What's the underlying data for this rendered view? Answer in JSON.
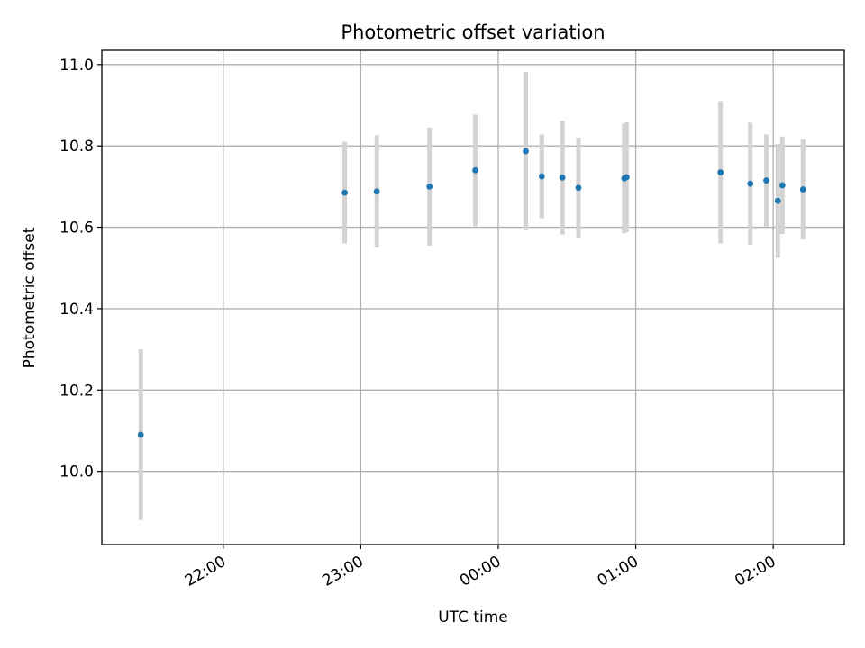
{
  "chart_data": {
    "type": "scatter",
    "title": "Photometric offset variation",
    "xlabel": "UTC time",
    "ylabel": "Photometric offset",
    "x_ticks": [
      "22:00",
      "23:00",
      "00:00",
      "01:00",
      "02:00"
    ],
    "y_ticks": [
      "10.0",
      "10.2",
      "10.4",
      "10.6",
      "10.8",
      "11.0"
    ],
    "xlim": [
      "21:07",
      "02:31"
    ],
    "ylim": [
      9.82,
      11.035
    ],
    "grid": true,
    "points": [
      {
        "x": "21:24",
        "y": 10.09,
        "err": 0.21
      },
      {
        "x": "22:53",
        "y": 10.685,
        "err": 0.125
      },
      {
        "x": "23:07",
        "y": 10.688,
        "err": 0.138
      },
      {
        "x": "23:30",
        "y": 10.7,
        "err": 0.145
      },
      {
        "x": "23:50",
        "y": 10.74,
        "err": 0.137
      },
      {
        "x": "00:12",
        "y": 10.787,
        "err": 0.195
      },
      {
        "x": "00:19",
        "y": 10.725,
        "err": 0.103
      },
      {
        "x": "00:28",
        "y": 10.722,
        "err": 0.14
      },
      {
        "x": "00:35",
        "y": 10.697,
        "err": 0.123
      },
      {
        "x": "00:55",
        "y": 10.72,
        "err": 0.135
      },
      {
        "x": "00:56",
        "y": 10.723,
        "err": 0.135
      },
      {
        "x": "01:37",
        "y": 10.735,
        "err": 0.175
      },
      {
        "x": "01:50",
        "y": 10.707,
        "err": 0.15
      },
      {
        "x": "01:57",
        "y": 10.715,
        "err": 0.113
      },
      {
        "x": "02:02",
        "y": 10.665,
        "err": 0.14
      },
      {
        "x": "02:04",
        "y": 10.703,
        "err": 0.12
      },
      {
        "x": "02:13",
        "y": 10.693,
        "err": 0.123
      }
    ],
    "colors": {
      "point": "#1f77b4",
      "errorbar": "#d3d3d3",
      "grid": "#b0b0b0",
      "axes": "#000000"
    }
  }
}
